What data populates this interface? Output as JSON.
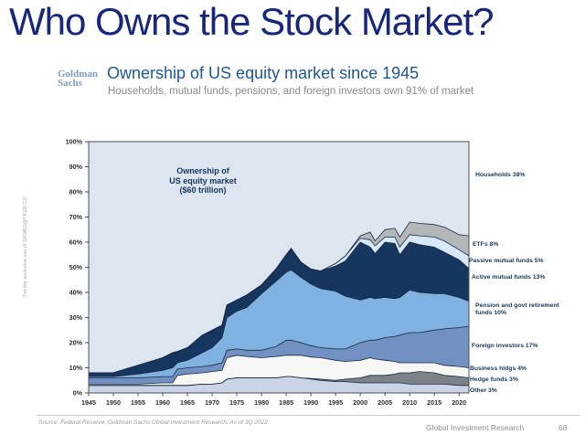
{
  "slide": {
    "title": "Who Owns the Stock Market?",
    "watermark": "For the exclusive use of SAMBO@TKER.CO",
    "logo": {
      "line1": "Goldman",
      "line2": "Sachs"
    },
    "header": {
      "heading": "Ownership of US equity market since 1945",
      "subheading": "Households, mutual funds, pensions, and foreign investors own 91% of market"
    },
    "footer": {
      "source": "Source: Federal Reserve, Goldman Sachs Global Investment Research. As of 3Q 2022.",
      "brand": "Global Investment Research",
      "page": "68"
    }
  },
  "chart_data": {
    "type": "area",
    "stacked": true,
    "annotation": [
      "Ownership of",
      "US equity market",
      "($60 trillion)"
    ],
    "xlim": [
      1945,
      2022
    ],
    "ylim": [
      0,
      100
    ],
    "background": "#dde5f1",
    "plot_border_color": "#4d4f52",
    "boundary_line_color": "#1a2940",
    "x": [
      1945,
      1950,
      1955,
      1960,
      1962,
      1963,
      1965,
      1968,
      1970,
      1972,
      1973,
      1975,
      1977,
      1980,
      1983,
      1985,
      1986,
      1988,
      1990,
      1992,
      1995,
      1997,
      2000,
      2002,
      2003,
      2005,
      2007,
      2008,
      2010,
      2012,
      2015,
      2017,
      2020,
      2022
    ],
    "x_ticks": [
      1945,
      1950,
      1955,
      1960,
      1965,
      1970,
      1975,
      1980,
      1985,
      1990,
      1995,
      2000,
      2005,
      2010,
      2015,
      2020
    ],
    "y_ticks": [
      "0%",
      "10%",
      "20%",
      "30%",
      "40%",
      "50%",
      "60%",
      "70%",
      "80%",
      "90%",
      "100%"
    ],
    "series": [
      {
        "name": "other",
        "legend": "Other 3%",
        "color": "#c9d4e7",
        "values": [
          3,
          3,
          3,
          3,
          3,
          3,
          3,
          3.5,
          3.5,
          4,
          5.5,
          6,
          6,
          6,
          6,
          6.5,
          6.5,
          6,
          5.5,
          5,
          4.5,
          4.5,
          4,
          4,
          4,
          4,
          4,
          4,
          3.5,
          3.5,
          3.5,
          3.5,
          3,
          3
        ]
      },
      {
        "name": "hedge-funds",
        "legend": "Hedge funds 3%",
        "color": "#7d8288",
        "values": [
          0,
          0,
          0,
          0,
          0,
          0,
          0,
          0,
          0,
          0,
          0,
          0,
          0,
          0,
          0,
          0,
          0,
          0,
          0.3,
          0.5,
          0.5,
          1,
          2,
          3,
          3,
          3,
          3.5,
          4,
          4.5,
          5,
          4.5,
          3.5,
          3.5,
          3
        ]
      },
      {
        "name": "business-holdings",
        "legend": "Business hldgs 4%",
        "color": "#f7f8f6",
        "values": [
          0.5,
          0.5,
          0.5,
          1,
          1,
          4,
          4.5,
          4.5,
          5,
          5,
          8.5,
          9,
          8.5,
          8,
          8.5,
          8.5,
          8.5,
          9,
          8.5,
          8.5,
          8,
          7,
          7,
          7,
          6.5,
          6,
          5,
          4,
          4,
          3.5,
          4,
          4,
          4,
          4
        ]
      },
      {
        "name": "foreign-investors",
        "legend": "Foreign investors 17%",
        "color": "#7191c2",
        "values": [
          2.5,
          2.5,
          2.5,
          2.5,
          2.5,
          2.5,
          2.5,
          2.5,
          2.5,
          3,
          3,
          2.5,
          2.5,
          3,
          4,
          6,
          6,
          5,
          4.5,
          4,
          4.5,
          5,
          7,
          7,
          7.5,
          9,
          10,
          11,
          12,
          12,
          13,
          14.5,
          15.5,
          16.5
        ]
      },
      {
        "name": "pension-govt-retirement",
        "legend": "Pension and govt retirement funds 10%",
        "color": "#7fb2e0",
        "values": [
          0.5,
          0.5,
          1.5,
          2.5,
          3.5,
          2.5,
          3,
          5.5,
          7,
          10,
          13,
          15,
          17,
          22.5,
          26,
          27,
          28,
          26,
          24.5,
          23.5,
          23,
          21,
          17,
          17,
          16.5,
          16,
          15,
          15,
          17,
          16,
          14.5,
          14,
          12,
          10
        ]
      },
      {
        "name": "active-mutual-funds",
        "legend": "Active mutual funds 13%",
        "color": "#14365f",
        "values": [
          1.5,
          1.5,
          3.5,
          5,
          6,
          4.5,
          5,
          7,
          7,
          5,
          5,
          4.5,
          5,
          3.5,
          5,
          7,
          8.5,
          6,
          6,
          7,
          10,
          14,
          23,
          20,
          18,
          22,
          22,
          17,
          19,
          19,
          18.5,
          16.5,
          15,
          13
        ]
      },
      {
        "name": "passive-mutual-funds",
        "legend": "Passive mutual funds 5%",
        "color": "#d7e9f9",
        "values": [
          0,
          0,
          0,
          0,
          0,
          0,
          0,
          0,
          0,
          0,
          0,
          0,
          0,
          0,
          0,
          0,
          0,
          0,
          0,
          0,
          1,
          2,
          1.5,
          3,
          3,
          2,
          2.5,
          3,
          3,
          3.5,
          4,
          4.5,
          4,
          5
        ]
      },
      {
        "name": "etfs",
        "legend": "ETFs 8%",
        "color": "#b4b7ba",
        "values": [
          0,
          0,
          0,
          0,
          0,
          0,
          0,
          0,
          0,
          0,
          0,
          0,
          0,
          0,
          0,
          0,
          0,
          0,
          0,
          0,
          0,
          0,
          1,
          3,
          2,
          3,
          3.5,
          4,
          5,
          5,
          5,
          5.5,
          6,
          8
        ]
      },
      {
        "name": "households",
        "legend": "Households 38%",
        "color": "#dde5f1",
        "values": [
          92,
          92,
          89,
          86,
          84,
          83.5,
          82,
          77,
          75,
          73,
          65,
          63,
          61,
          57,
          50.5,
          45,
          42.5,
          48,
          50.7,
          51.5,
          48.5,
          45.5,
          37.5,
          36,
          39.5,
          35,
          34.5,
          38,
          32,
          32.5,
          33,
          34,
          37,
          37.5
        ]
      }
    ],
    "legend_position": "right"
  }
}
